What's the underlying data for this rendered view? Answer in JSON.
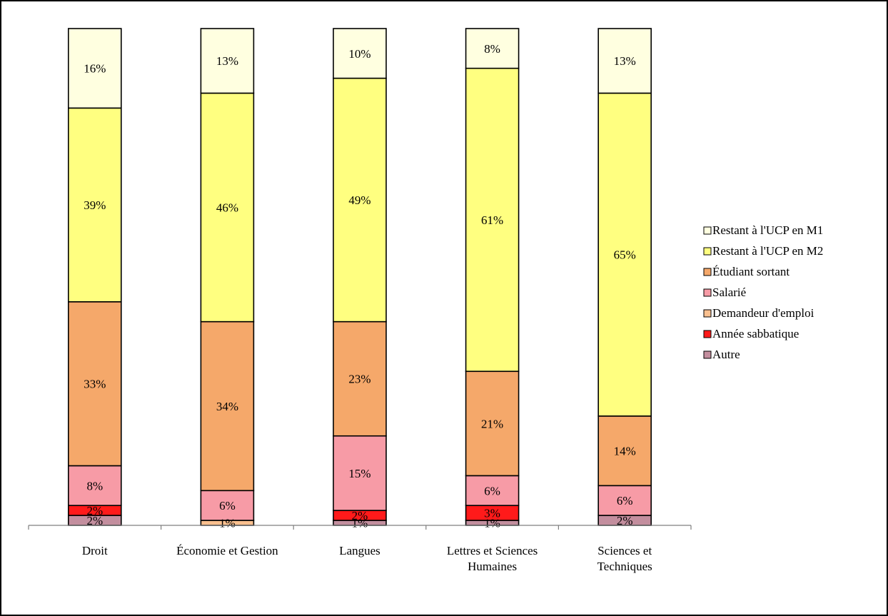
{
  "chart_data": {
    "type": "bar",
    "stacked": true,
    "percent_stacked": true,
    "categories": [
      [
        "Droit"
      ],
      [
        "Économie et Gestion"
      ],
      [
        "Langues"
      ],
      [
        "Lettres et Sciences",
        "Humaines"
      ],
      [
        "Sciences et",
        "Techniques"
      ]
    ],
    "series": [
      {
        "name": "Autre",
        "color": "#c38e9e",
        "values": [
          2,
          0,
          1,
          1,
          2
        ],
        "labels": [
          "2%",
          "",
          "1%",
          "1%",
          "2%"
        ]
      },
      {
        "name": "Année sabbatique",
        "color": "#ff1a1a",
        "values": [
          2,
          0,
          2,
          3,
          0
        ],
        "labels": [
          "2%",
          "",
          "2%",
          "3%",
          ""
        ]
      },
      {
        "name": "Demandeur d'emploi",
        "color": "#fac08f",
        "values": [
          0,
          1,
          0,
          0,
          0
        ],
        "labels": [
          "",
          "1%",
          "",
          "",
          ""
        ]
      },
      {
        "name": "Salarié",
        "color": "#f79ba6",
        "values": [
          8,
          6,
          15,
          6,
          6
        ],
        "labels": [
          "8%",
          "6%",
          "15%",
          "6%",
          "6%"
        ]
      },
      {
        "name": "Étudiant sortant",
        "color": "#f5a86a",
        "values": [
          33,
          34,
          23,
          21,
          14
        ],
        "labels": [
          "33%",
          "34%",
          "23%",
          "21%",
          "14%"
        ]
      },
      {
        "name": "Restant à l'UCP en M2",
        "color": "#ffff80",
        "values": [
          39,
          46,
          49,
          61,
          65
        ],
        "labels": [
          "39%",
          "46%",
          "49%",
          "61%",
          "65%"
        ]
      },
      {
        "name": "Restant à l'UCP en M1",
        "color": "#ffffe0",
        "values": [
          16,
          13,
          10,
          8,
          13
        ],
        "labels": [
          "16%",
          "13%",
          "10%",
          "8%",
          "13%"
        ]
      }
    ],
    "legend_order": [
      "Restant à l'UCP en M1",
      "Restant à l'UCP en M2",
      "Étudiant sortant",
      "Salarié",
      "Demandeur d'emploi",
      "Année sabbatique",
      "Autre"
    ],
    "legend_position": "right",
    "ylim": [
      0,
      100
    ],
    "grid": false,
    "title": "",
    "xlabel": "",
    "ylabel": ""
  }
}
